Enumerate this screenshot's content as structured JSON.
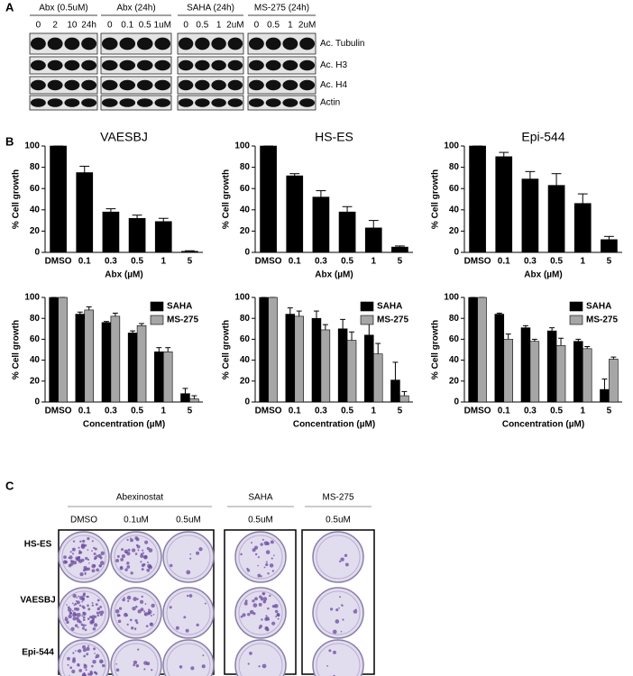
{
  "panel_labels": [
    "A",
    "B",
    "C"
  ],
  "blots": {
    "groups": [
      {
        "title": "Abx (0.5uM)",
        "lanes": [
          "0",
          "2",
          "10",
          "24h"
        ]
      },
      {
        "title": "Abx (24h)",
        "lanes": [
          "0",
          "0.1",
          "0.5",
          "1uM"
        ]
      },
      {
        "title": "SAHA (24h)",
        "lanes": [
          "0",
          "0.5",
          "1",
          "2uM"
        ]
      },
      {
        "title": "MS-275 (24h)",
        "lanes": [
          "0",
          "0.5",
          "1",
          "2uM"
        ]
      }
    ],
    "rows": [
      "Ac. Tubulin",
      "Ac. H3",
      "Ac. H4",
      "Actin"
    ]
  },
  "chart_data": [
    {
      "type": "bar",
      "title": "VAESBJ",
      "x_label": "Abx (µM)",
      "y_label": "% Cell growth",
      "categories": [
        "DMSO",
        "0.1",
        "0.3",
        "0.5",
        "1",
        "5"
      ],
      "series": [
        {
          "color": "#000000",
          "values": [
            100,
            75,
            38,
            32,
            29,
            1
          ],
          "errors": [
            0,
            6,
            3,
            3,
            3,
            0.5
          ]
        }
      ],
      "ylim": [
        0,
        100
      ],
      "yticks": [
        0,
        20,
        40,
        60,
        80,
        100
      ]
    },
    {
      "type": "bar",
      "title": "HS-ES",
      "x_label": "Abx (µM)",
      "y_label": "% Cell growth",
      "categories": [
        "DMSO",
        "0.1",
        "0.3",
        "0.5",
        "1",
        "5"
      ],
      "series": [
        {
          "color": "#000000",
          "values": [
            100,
            72,
            52,
            38,
            23,
            5
          ],
          "errors": [
            0,
            2,
            6,
            5,
            7,
            1
          ]
        }
      ],
      "ylim": [
        0,
        100
      ],
      "yticks": [
        0,
        20,
        40,
        60,
        80,
        100
      ]
    },
    {
      "type": "bar",
      "title": "Epi-544",
      "x_label": "Abx (µM)",
      "y_label": "% Cell growth",
      "categories": [
        "DMSO",
        "0.1",
        "0.3",
        "0.5",
        "1",
        "5"
      ],
      "series": [
        {
          "color": "#000000",
          "values": [
            100,
            90,
            69,
            63,
            46,
            12
          ],
          "errors": [
            0,
            4,
            7,
            11,
            9,
            3
          ]
        }
      ],
      "ylim": [
        0,
        100
      ],
      "yticks": [
        0,
        20,
        40,
        60,
        80,
        100
      ]
    },
    {
      "type": "bar",
      "x_label": "Concentration (µM)",
      "y_label": "% Cell growth",
      "legend": "upper right",
      "categories": [
        "DMSO",
        "0.1",
        "0.3",
        "0.5",
        "1",
        "5"
      ],
      "series": [
        {
          "name": "SAHA",
          "color": "#000000",
          "values": [
            100,
            84,
            76,
            66,
            48,
            8
          ],
          "errors": [
            0,
            2,
            1,
            2,
            4,
            5
          ]
        },
        {
          "name": "MS-275",
          "color": "#a6a6a6",
          "values": [
            100,
            88,
            82,
            73,
            48,
            3
          ],
          "errors": [
            0,
            3,
            3,
            2,
            4,
            3
          ]
        }
      ],
      "ylim": [
        0,
        100
      ],
      "yticks": [
        0,
        20,
        40,
        60,
        80,
        100
      ]
    },
    {
      "type": "bar",
      "x_label": "Concentration (µM)",
      "y_label": "% Cell growth",
      "legend": "upper right",
      "categories": [
        "DMSO",
        "0.1",
        "0.3",
        "0.5",
        "1",
        "5"
      ],
      "series": [
        {
          "name": "SAHA",
          "color": "#000000",
          "values": [
            100,
            84,
            80,
            70,
            64,
            21
          ],
          "errors": [
            0,
            6,
            7,
            9,
            11,
            17
          ]
        },
        {
          "name": "MS-275",
          "color": "#a6a6a6",
          "values": [
            100,
            82,
            69,
            59,
            46,
            6
          ],
          "errors": [
            0,
            5,
            5,
            8,
            10,
            4
          ]
        }
      ],
      "ylim": [
        0,
        100
      ],
      "yticks": [
        0,
        20,
        40,
        60,
        80,
        100
      ]
    },
    {
      "type": "bar",
      "x_label": "Concentration (µM)",
      "y_label": "% Cell growth",
      "legend": "upper right",
      "categories": [
        "DMSO",
        "0.1",
        "0.3",
        "0.5",
        "1",
        "5"
      ],
      "series": [
        {
          "name": "SAHA",
          "color": "#000000",
          "values": [
            100,
            84,
            71,
            68,
            58,
            12
          ],
          "errors": [
            0,
            1,
            2,
            3,
            2,
            10
          ]
        },
        {
          "name": "MS-275",
          "color": "#a6a6a6",
          "values": [
            100,
            60,
            58,
            54,
            51,
            41
          ],
          "errors": [
            0,
            5,
            2,
            7,
            2,
            2
          ]
        }
      ],
      "ylim": [
        0,
        100
      ],
      "yticks": [
        0,
        20,
        40,
        60,
        80,
        100
      ]
    }
  ],
  "plates": {
    "groups": [
      {
        "title": "Abexinostat",
        "columns": [
          "DMSO",
          "0.1uM",
          "0.5uM"
        ]
      },
      {
        "title": "SAHA",
        "columns": [
          "0.5uM"
        ]
      },
      {
        "title": "MS-275",
        "columns": [
          "0.5uM"
        ]
      }
    ],
    "rows": [
      "HS-ES",
      "VAESBJ",
      "Epi-544"
    ]
  }
}
